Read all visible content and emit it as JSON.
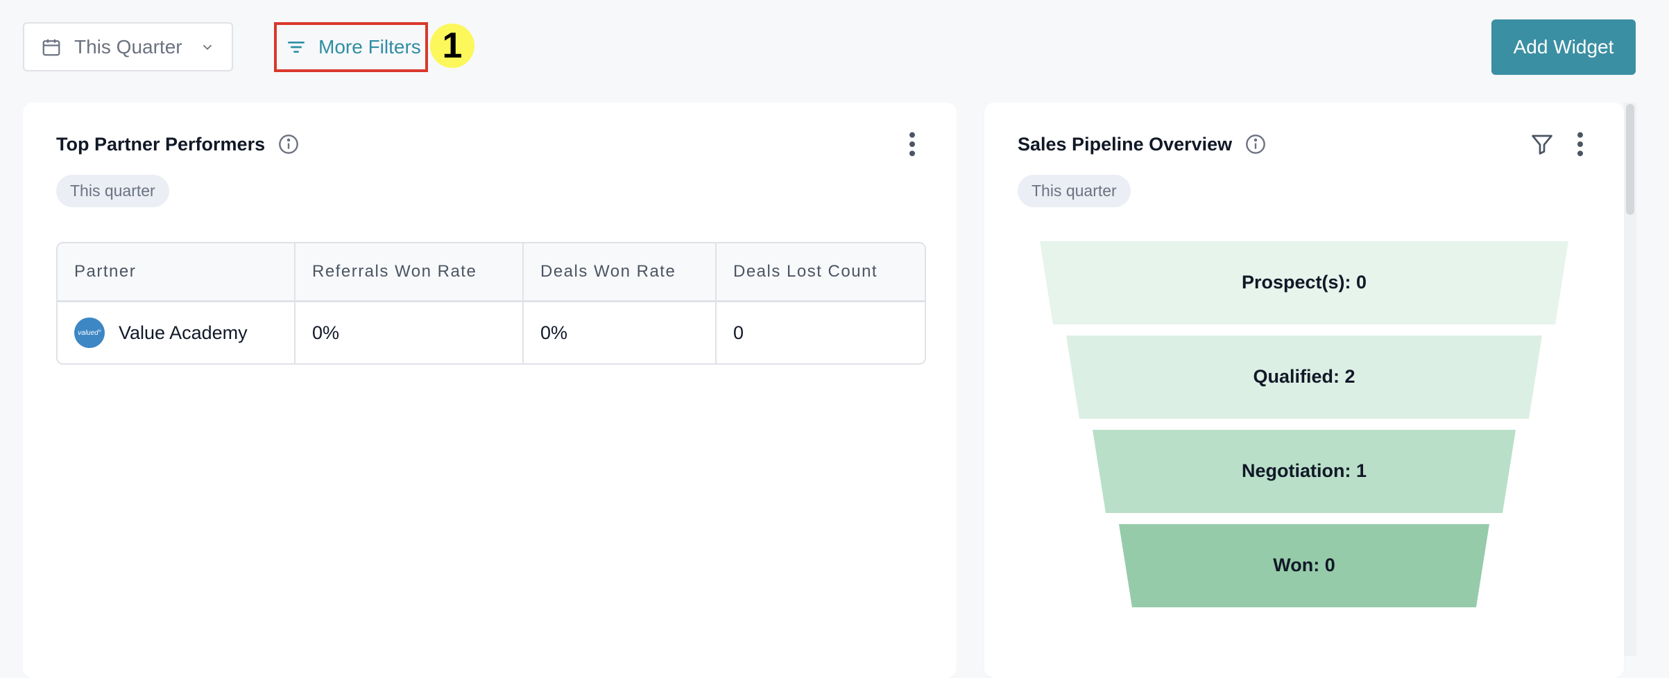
{
  "toolbar": {
    "date_range": "This Quarter",
    "more_filters": "More Filters",
    "step_marker": "1",
    "add_widget": "Add Widget"
  },
  "top_partners": {
    "title": "Top Partner Performers",
    "period": "This quarter",
    "columns": [
      "Partner",
      "Referrals Won Rate",
      "Deals Won Rate",
      "Deals Lost Count"
    ],
    "rows": [
      {
        "partner": "Value Academy",
        "avatar_text": "valued°",
        "referrals_won_rate": "0%",
        "deals_won_rate": "0%",
        "deals_lost_count": "0"
      }
    ]
  },
  "pipeline": {
    "title": "Sales Pipeline Overview",
    "period": "This quarter",
    "stages": [
      {
        "label": "Prospect(s): 0",
        "value": 0,
        "color": "#e6f4ec"
      },
      {
        "label": "Qualified: 2",
        "value": 2,
        "color": "#dcefe4"
      },
      {
        "label": "Negotiation: 1",
        "value": 1,
        "color": "#b9dfc8"
      },
      {
        "label": "Won: 0",
        "value": 0,
        "color": "#95cba9"
      }
    ]
  },
  "colors": {
    "accent": "#3b8fa3",
    "highlight_box": "#d9382c",
    "marker": "#fcf75a"
  }
}
